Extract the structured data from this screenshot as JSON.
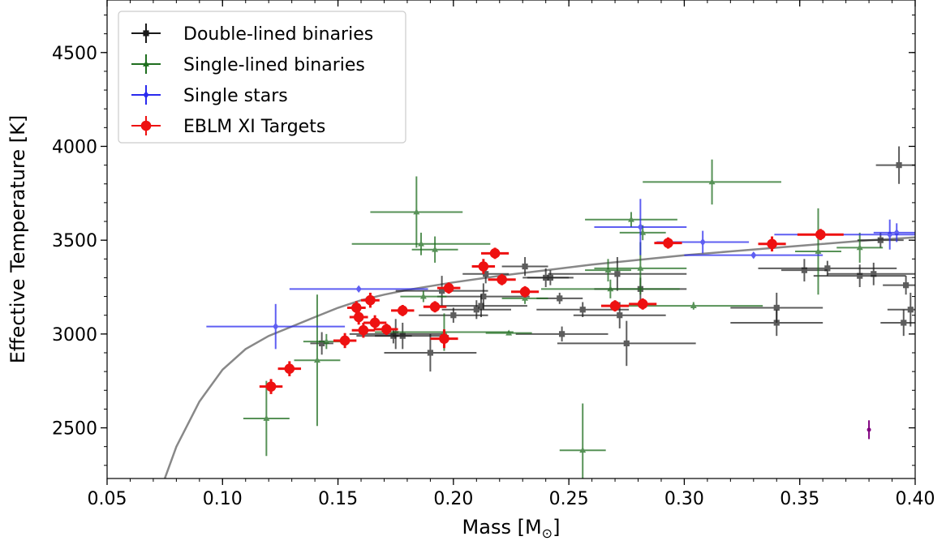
{
  "chart_data": {
    "type": "scatter",
    "xlabel_main": "Mass [M",
    "xlabel_sub": "⊙",
    "xlabel_end": "]",
    "ylabel": "Effective Temperature [K]",
    "xlim": [
      0.05,
      0.4
    ],
    "ylim": [
      2230,
      4780
    ],
    "x_ticks": [
      "0.05",
      "0.10",
      "0.15",
      "0.20",
      "0.25",
      "0.30",
      "0.35",
      "0.40"
    ],
    "x_tick_values": [
      0.05,
      0.1,
      0.15,
      0.2,
      0.25,
      0.3,
      0.35,
      0.4
    ],
    "y_ticks": [
      "2500",
      "3000",
      "3500",
      "4000",
      "4500"
    ],
    "y_tick_values": [
      2500,
      3000,
      3500,
      4000,
      4500
    ],
    "x_minor": 0.01,
    "y_minor": 100,
    "grid": false,
    "legend_position": "upper-left",
    "colors": {
      "double": "#1a1a1a",
      "single_lined": "#1f6e1f",
      "single": "#2a2aee",
      "eblm": "#ee1111",
      "model": "#888888",
      "outlier": "#800080"
    },
    "series": [
      {
        "name": "Double-lined binaries",
        "marker": "square",
        "points": [
          [
            0.143,
            2950,
            0.005,
            60
          ],
          [
            0.174,
            2990,
            0.008,
            40
          ],
          [
            0.175,
            3000,
            0.02,
            80
          ],
          [
            0.178,
            2990,
            0.02,
            70
          ],
          [
            0.19,
            2900,
            0.02,
            100
          ],
          [
            0.195,
            3230,
            0.02,
            80
          ],
          [
            0.2,
            3100,
            0.015,
            40
          ],
          [
            0.21,
            3130,
            0.015,
            50
          ],
          [
            0.212,
            3150,
            0.02,
            60
          ],
          [
            0.213,
            3200,
            0.02,
            70
          ],
          [
            0.214,
            3320,
            0.01,
            50
          ],
          [
            0.231,
            3360,
            0.01,
            50
          ],
          [
            0.24,
            3300,
            0.01,
            50
          ],
          [
            0.242,
            3300,
            0.01,
            40
          ],
          [
            0.246,
            3190,
            0.01,
            30
          ],
          [
            0.247,
            3000,
            0.02,
            40
          ],
          [
            0.256,
            3130,
            0.02,
            40
          ],
          [
            0.271,
            3320,
            0.03,
            90
          ],
          [
            0.272,
            3100,
            0.02,
            70
          ],
          [
            0.275,
            2950,
            0.03,
            120
          ],
          [
            0.281,
            3240,
            0.02,
            60
          ],
          [
            0.34,
            3140,
            0.02,
            80
          ],
          [
            0.34,
            3060,
            0.02,
            70
          ],
          [
            0.352,
            3340,
            0.01,
            60
          ],
          [
            0.362,
            3350,
            0.03,
            40
          ],
          [
            0.376,
            3310,
            0.02,
            60
          ],
          [
            0.382,
            3320,
            0.02,
            60
          ],
          [
            0.385,
            3500,
            0.01,
            40
          ],
          [
            0.393,
            3900,
            0.01,
            100
          ],
          [
            0.395,
            3060,
            0.01,
            70
          ],
          [
            0.396,
            3260,
            0.01,
            50
          ],
          [
            0.398,
            3130,
            0.01,
            90
          ]
        ]
      },
      {
        "name": "Single-lined binaries",
        "marker": "triangle",
        "points": [
          [
            0.119,
            2550,
            0.01,
            200
          ],
          [
            0.141,
            2860,
            0.01,
            350
          ],
          [
            0.145,
            2960,
            0.01,
            40
          ],
          [
            0.184,
            3650,
            0.02,
            190
          ],
          [
            0.186,
            3480,
            0.03,
            60
          ],
          [
            0.187,
            3200,
            0.01,
            30
          ],
          [
            0.192,
            3450,
            0.01,
            70
          ],
          [
            0.196,
            3010,
            0.03,
            100
          ],
          [
            0.224,
            3005,
            0.01,
            10
          ],
          [
            0.231,
            3190,
            0.01,
            30
          ],
          [
            0.256,
            2380,
            0.01,
            250
          ],
          [
            0.267,
            3340,
            0.01,
            60
          ],
          [
            0.268,
            3240,
            0.03,
            50
          ],
          [
            0.277,
            3610,
            0.02,
            40
          ],
          [
            0.281,
            3350,
            0.02,
            140
          ],
          [
            0.282,
            3540,
            0.01,
            40
          ],
          [
            0.304,
            3150,
            0.03,
            20
          ],
          [
            0.312,
            3810,
            0.03,
            120
          ],
          [
            0.358,
            3440,
            0.01,
            230
          ],
          [
            0.376,
            3460,
            0.01,
            80
          ]
        ]
      },
      {
        "name": "Single stars",
        "marker": "diamond",
        "points": [
          [
            0.123,
            3040,
            0.03,
            120
          ],
          [
            0.159,
            3240,
            0.03,
            10
          ],
          [
            0.281,
            3570,
            0.02,
            150
          ],
          [
            0.308,
            3490,
            0.02,
            60
          ],
          [
            0.33,
            3420,
            0.03,
            10
          ],
          [
            0.389,
            3530,
            0.05,
            80
          ],
          [
            0.392,
            3540,
            0.01,
            50
          ]
        ]
      },
      {
        "name": "EBLM XI Targets",
        "marker": "circle",
        "points": [
          [
            0.121,
            2720,
            0.005,
            40
          ],
          [
            0.129,
            2815,
            0.005,
            40
          ],
          [
            0.153,
            2965,
            0.005,
            40
          ],
          [
            0.158,
            3140,
            0.004,
            35
          ],
          [
            0.159,
            3090,
            0.004,
            40
          ],
          [
            0.161,
            3020,
            0.005,
            40
          ],
          [
            0.164,
            3180,
            0.004,
            40
          ],
          [
            0.166,
            3060,
            0.005,
            40
          ],
          [
            0.171,
            3025,
            0.005,
            30
          ],
          [
            0.178,
            3125,
            0.005,
            30
          ],
          [
            0.192,
            3145,
            0.005,
            30
          ],
          [
            0.196,
            2975,
            0.006,
            50
          ],
          [
            0.198,
            3245,
            0.005,
            30
          ],
          [
            0.213,
            3360,
            0.005,
            40
          ],
          [
            0.218,
            3430,
            0.006,
            30
          ],
          [
            0.221,
            3290,
            0.006,
            30
          ],
          [
            0.231,
            3225,
            0.006,
            30
          ],
          [
            0.27,
            3150,
            0.006,
            30
          ],
          [
            0.282,
            3160,
            0.006,
            30
          ],
          [
            0.293,
            3485,
            0.006,
            30
          ],
          [
            0.338,
            3480,
            0.006,
            40
          ],
          [
            0.359,
            3530,
            0.01,
            30
          ]
        ]
      }
    ],
    "model_curve": {
      "x": [
        0.075,
        0.08,
        0.09,
        0.1,
        0.11,
        0.12,
        0.13,
        0.14,
        0.15,
        0.16,
        0.17,
        0.18,
        0.19,
        0.2,
        0.22,
        0.24,
        0.26,
        0.28,
        0.3,
        0.32,
        0.34,
        0.36,
        0.38,
        0.4
      ],
      "y": [
        2230,
        2400,
        2640,
        2810,
        2920,
        2990,
        3040,
        3090,
        3140,
        3180,
        3210,
        3235,
        3255,
        3275,
        3310,
        3340,
        3370,
        3395,
        3420,
        3440,
        3460,
        3480,
        3500,
        3515
      ]
    },
    "outlier_point": [
      0.38,
      2490,
      0,
      50
    ]
  }
}
